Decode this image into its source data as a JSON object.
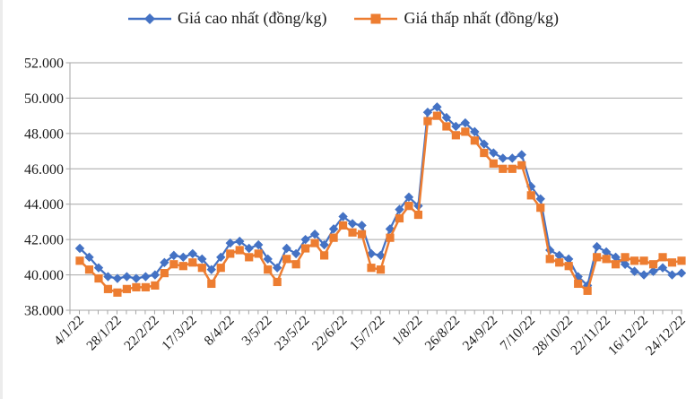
{
  "page": {
    "background": "#ffffff"
  },
  "legend": {
    "position": "top",
    "items": [
      {
        "label": "Giá cao nhất (đồng/kg)",
        "color": "#4472C4",
        "marker": "diamond"
      },
      {
        "label": "Giá thấp nhất (đồng/kg)",
        "color": "#ED7D31",
        "marker": "square"
      }
    ]
  },
  "chart_data": {
    "type": "line",
    "title": "",
    "xlabel": "",
    "ylabel": "",
    "grid": "horizontal-only",
    "legend_position": "top",
    "axis_color": "#A6A6A6",
    "text_color": "#1a1a1a",
    "n_points": 65,
    "x_tick_interval": 4,
    "x_tick_labels": [
      "4/1/22",
      "28/1/22",
      "22/2/22",
      "17/3/22",
      "8/4/22",
      "3/5/22",
      "23/5/22",
      "22/6/22",
      "15/7/22",
      "1/8/22",
      "26/8/22",
      "24/9/22",
      "7/10/22",
      "28/10/22",
      "22/11/22",
      "16/12/22",
      "24/12/22"
    ],
    "y_axis": {
      "min": 38000,
      "max": 52000,
      "step": 2000,
      "tick_labels": [
        "38.000",
        "40.000",
        "42.000",
        "44.000",
        "46.000",
        "48.000",
        "50.000",
        "52.000"
      ]
    },
    "series": [
      {
        "name": "Giá cao nhất (đồng/kg)",
        "color": "#4472C4",
        "marker": "diamond",
        "values": [
          41500,
          41000,
          40400,
          39900,
          39800,
          39900,
          39800,
          39900,
          40000,
          40700,
          41100,
          41000,
          41200,
          40900,
          40300,
          41000,
          41800,
          41900,
          41500,
          41700,
          40900,
          40400,
          41500,
          41200,
          42000,
          42300,
          41700,
          42600,
          43300,
          42900,
          42800,
          41200,
          41100,
          42600,
          43700,
          44400,
          43900,
          49200,
          49500,
          48900,
          48400,
          48600,
          48100,
          47400,
          46900,
          46600,
          46600,
          46800,
          45000,
          44300,
          41400,
          41100,
          40900,
          39900,
          39400,
          41600,
          41300,
          41000,
          40600,
          40200,
          40000,
          40200,
          40400,
          40000,
          40100
        ]
      },
      {
        "name": "Giá thấp nhất (đồng/kg)",
        "color": "#ED7D31",
        "marker": "square",
        "values": [
          40800,
          40300,
          39800,
          39200,
          39000,
          39200,
          39300,
          39300,
          39400,
          40100,
          40600,
          40500,
          40700,
          40400,
          39500,
          40400,
          41200,
          41400,
          41000,
          41200,
          40300,
          39600,
          40900,
          40600,
          41500,
          41800,
          41100,
          42100,
          42800,
          42400,
          42300,
          40400,
          40300,
          42100,
          43200,
          43900,
          43400,
          48700,
          49000,
          48400,
          47900,
          48100,
          47600,
          46900,
          46300,
          46000,
          46000,
          46200,
          44500,
          43800,
          40900,
          40700,
          40500,
          39500,
          39100,
          41000,
          40900,
          40600,
          41000,
          40800,
          40800,
          40600,
          41000,
          40700,
          40800
        ]
      }
    ]
  }
}
